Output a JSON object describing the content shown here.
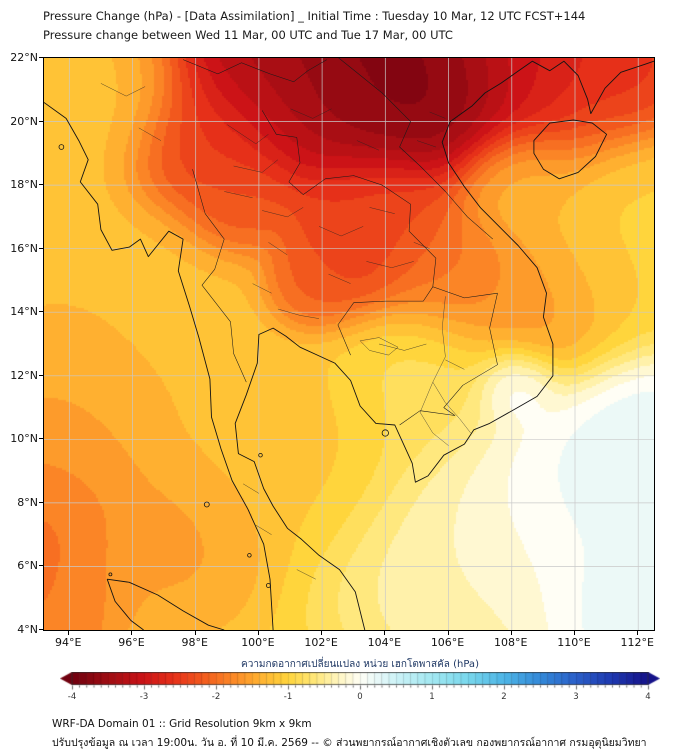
{
  "header": {
    "title_line1": "Pressure Change (hPa) - [Data Assimilation] _ Initial Time : Tuesday 10 Mar, 12 UTC FCST+144",
    "title_line2": "Pressure change between Wed 11 Mar, 00 UTC and Tue 17 Mar, 00 UTC"
  },
  "map": {
    "extent": {
      "lon_min": 93.2,
      "lon_max": 112.5,
      "lat_min": 4,
      "lat_max": 22
    },
    "x_tick_values": [
      94,
      96,
      98,
      100,
      102,
      104,
      106,
      108,
      110,
      112
    ],
    "x_tick_labels": [
      "94°E",
      "96°E",
      "98°E",
      "100°E",
      "102°E",
      "104°E",
      "106°E",
      "108°E",
      "110°E",
      "112°E"
    ],
    "y_tick_values": [
      22,
      20,
      18,
      16,
      14,
      12,
      10,
      8,
      6,
      4
    ],
    "y_tick_labels": [
      "22°N",
      "20°N",
      "18°N",
      "16°N",
      "14°N",
      "12°N",
      "10°N",
      "8°N",
      "6°N",
      "4°N"
    ]
  },
  "colorbar": {
    "label": "ความกดอากาศเปลี่ยนแปลง หน่วย เฮกโตพาสคัล (hPa)",
    "min": -4,
    "max": 4,
    "segment_width": 0.1,
    "tick_values": [
      -4,
      -3,
      -2,
      -1,
      0,
      1,
      2,
      3,
      4
    ],
    "tick_labels": [
      "-4",
      "-3",
      "-2",
      "-1",
      "0",
      "1",
      "2",
      "3",
      "4"
    ],
    "stops": [
      {
        "value": -4.3,
        "color": "#5c000c"
      },
      {
        "value": -4.0,
        "color": "#70000f"
      },
      {
        "value": -3.5,
        "color": "#a00d13"
      },
      {
        "value": -3.0,
        "color": "#cc1317"
      },
      {
        "value": -2.6,
        "color": "#e63019"
      },
      {
        "value": -2.2,
        "color": "#f2581d"
      },
      {
        "value": -1.8,
        "color": "#fb8526"
      },
      {
        "value": -1.4,
        "color": "#ffb030"
      },
      {
        "value": -1.0,
        "color": "#ffd53c"
      },
      {
        "value": -0.6,
        "color": "#ffe87e"
      },
      {
        "value": -0.3,
        "color": "#fff5c0"
      },
      {
        "value": 0.0,
        "color": "#fffef5"
      },
      {
        "value": 0.3,
        "color": "#e2f7f8"
      },
      {
        "value": 0.6,
        "color": "#c3f0f5"
      },
      {
        "value": 1.0,
        "color": "#a2e8f1"
      },
      {
        "value": 1.5,
        "color": "#78d7ec"
      },
      {
        "value": 2.0,
        "color": "#4db5e6"
      },
      {
        "value": 2.5,
        "color": "#3389d9"
      },
      {
        "value": 3.0,
        "color": "#2a5fc9"
      },
      {
        "value": 3.5,
        "color": "#1e38b0"
      },
      {
        "value": 4.0,
        "color": "#151289"
      },
      {
        "value": 4.3,
        "color": "#10106e"
      }
    ]
  },
  "footer": {
    "line1": "WRF-DA Domain 01 :: Grid Resolution 9km x 9km",
    "line2": "ปรับปรุงข้อมูล ณ เวลา 19:00น. วัน อ. ที่ 10 มี.ค. 2569 -- © ส่วนพยากรณ์อากาศเชิงตัวเลข กองพยากรณ์อากาศ กรมอุตุนิยมวิทยา"
  },
  "chart_data": {
    "type": "heatmap",
    "subtype": "filled-contour-weather-map",
    "variable": "Pressure change (hPa)",
    "title": "Pressure Change (hPa) - [Data Assimilation]",
    "lon_range": [
      93.2,
      112.5
    ],
    "lat_range": [
      4,
      22
    ],
    "colorbar_range": [
      -4,
      4
    ],
    "contour_interval": 0.2,
    "background_value": -1.1,
    "background_weight": 0.18,
    "features": [
      {
        "lon": 102.8,
        "lat": 24.0,
        "spread_deg": 3.2,
        "value": -4.3
      },
      {
        "lon": 105.5,
        "lat": 21.0,
        "spread_deg": 1.4,
        "value": -4.0
      },
      {
        "lon": 103.5,
        "lat": 22.2,
        "spread_deg": 1.5,
        "value": -3.7
      },
      {
        "lon": 100.2,
        "lat": 22.0,
        "spread_deg": 1.5,
        "value": -3.2
      },
      {
        "lon": 98.4,
        "lat": 19.2,
        "spread_deg": 1.2,
        "value": -2.5
      },
      {
        "lon": 99.2,
        "lat": 17.3,
        "spread_deg": 0.85,
        "value": -2.3
      },
      {
        "lon": 102.9,
        "lat": 15.9,
        "spread_deg": 1.15,
        "value": -2.6
      },
      {
        "lon": 101.6,
        "lat": 14.9,
        "spread_deg": 0.75,
        "value": -2.2
      },
      {
        "lon": 104.2,
        "lat": 16.8,
        "spread_deg": 1.1,
        "value": -2.4
      },
      {
        "lon": 106.1,
        "lat": 15.3,
        "spread_deg": 1.2,
        "value": -2.0
      },
      {
        "lon": 108.6,
        "lat": 22.6,
        "spread_deg": 1.9,
        "value": -3.0
      },
      {
        "lon": 111.9,
        "lat": 21.9,
        "spread_deg": 1.1,
        "value": -2.7
      },
      {
        "lon": 109.0,
        "lat": 14.2,
        "spread_deg": 1.4,
        "value": -1.7
      },
      {
        "lon": 92.9,
        "lat": 7.4,
        "spread_deg": 1.6,
        "value": -2.1
      },
      {
        "lon": 92.9,
        "lat": 4.3,
        "spread_deg": 1.4,
        "value": -2.0
      },
      {
        "lon": 94.0,
        "lat": 10.8,
        "spread_deg": 1.8,
        "value": -1.55
      },
      {
        "lon": 106.8,
        "lat": 6.2,
        "spread_deg": 2.4,
        "value": -0.2
      },
      {
        "lon": 109.9,
        "lat": 8.2,
        "spread_deg": 1.8,
        "value": 0.35
      },
      {
        "lon": 112.4,
        "lat": 9.8,
        "spread_deg": 1.6,
        "value": 0.55
      },
      {
        "lon": 111.7,
        "lat": 4.5,
        "spread_deg": 1.7,
        "value": 0.5
      },
      {
        "lon": 108.2,
        "lat": 11.6,
        "spread_deg": 0.7,
        "value": 0.3
      },
      {
        "lon": 95.2,
        "lat": 21.4,
        "spread_deg": 1.5,
        "value": -1.15
      },
      {
        "lon": 105.0,
        "lat": 11.7,
        "spread_deg": 1.4,
        "value": -0.8
      },
      {
        "lon": 108.1,
        "lat": 17.9,
        "spread_deg": 1.0,
        "value": -1.3
      },
      {
        "lon": 111.6,
        "lat": 15.6,
        "spread_deg": 1.6,
        "value": -1.05
      },
      {
        "lon": 101.4,
        "lat": 9.6,
        "spread_deg": 1.8,
        "value": -1.2
      },
      {
        "lon": 97.3,
        "lat": 14.0,
        "spread_deg": 1.6,
        "value": -1.25
      },
      {
        "lon": 97.5,
        "lat": 6.8,
        "spread_deg": 1.5,
        "value": -1.6
      }
    ]
  }
}
